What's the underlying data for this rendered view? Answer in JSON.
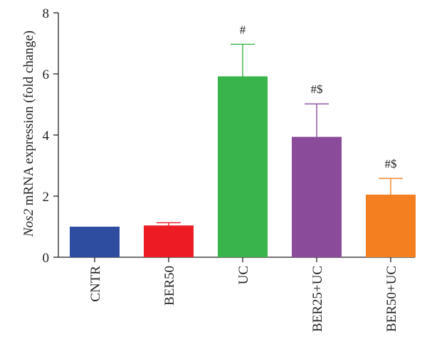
{
  "chart_data": {
    "type": "bar",
    "title": "",
    "xlabel": "",
    "ylabel": {
      "gene": "Nos2",
      "rest": " mRNA expression (fold change)"
    },
    "ylim": [
      0,
      8
    ],
    "yticks": [
      0,
      2,
      4,
      6,
      8
    ],
    "categories": [
      "CNTR",
      "BER50",
      "UC",
      "BER25+UC",
      "BER50+UC"
    ],
    "values": [
      1.0,
      1.04,
      5.92,
      3.94,
      2.05
    ],
    "error_upper": [
      1.0,
      1.13,
      6.97,
      5.02,
      2.58
    ],
    "annotations": [
      "",
      "",
      "#",
      "#$",
      "#$"
    ],
    "colors": [
      "#2e4da0",
      "#ec1c24",
      "#39b44a",
      "#8a4b9b",
      "#f47f20"
    ],
    "grid": false,
    "legend": "none"
  }
}
